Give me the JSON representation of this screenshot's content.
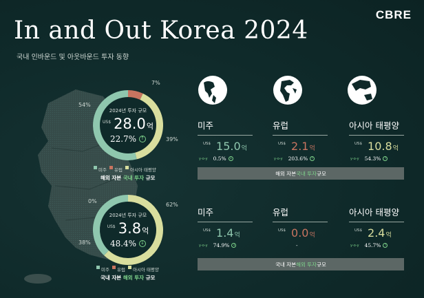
{
  "brand": "CBRE",
  "title": "In and Out Korea 2024",
  "subtitle": "국내 인바운드 및 아웃바운드 투자 동향",
  "colors": {
    "americas": "#8fc7ae",
    "europe": "#c87460",
    "asia": "#d9de9e",
    "growth": "#7ed38b"
  },
  "chart_data": [
    {
      "type": "pie",
      "title": "해외 자본 국내 투자 규모",
      "center_label": "2024년 투자 규모",
      "currency": "US$",
      "total": 28.0,
      "total_text": "28.0",
      "unit": "억",
      "growth": "22.7%",
      "growth_direction": "up",
      "categories": [
        "미주",
        "유럽",
        "아시아 태평양"
      ],
      "values": [
        54,
        7,
        39
      ],
      "labels": [
        "54%",
        "7%",
        "39%"
      ]
    },
    {
      "type": "pie",
      "title": "국내 자본 해외 투자 규모",
      "center_label": "2024년 투자 규모",
      "currency": "US$",
      "total": 3.8,
      "total_text": "3.8",
      "unit": "억",
      "growth": "48.4%",
      "growth_direction": "down",
      "categories": [
        "미주",
        "유럽",
        "아시아 태평양"
      ],
      "values": [
        38,
        0,
        62
      ],
      "labels": [
        "38%",
        "0%",
        "62%"
      ]
    }
  ],
  "legend": {
    "americas": "미주",
    "europe": "유럽",
    "asia": "아시아 태평양"
  },
  "donut1_title": {
    "pre": "해외 자본 ",
    "hl": "국내 투자",
    "post": " 규모"
  },
  "donut2_title": {
    "pre": "국내 자본 ",
    "hl": "해외 투자",
    "post": " 규모"
  },
  "inbound": {
    "regions": [
      {
        "name": "미주",
        "currency": "US$",
        "value": "15.0",
        "unit": "억",
        "yoy": "y-o-y",
        "growth": "0.5%",
        "dir": "down",
        "color": "#8fc7ae"
      },
      {
        "name": "유럽",
        "currency": "US$",
        "value": "2.1",
        "unit": "억",
        "yoy": "y-o-y",
        "growth": "203.6%",
        "dir": "up",
        "color": "#c87460"
      },
      {
        "name": "아시아 태평양",
        "currency": "US$",
        "value": "10.8",
        "unit": "억",
        "yoy": "y-o-y",
        "growth": "54.3%",
        "dir": "up",
        "color": "#d9de9e"
      }
    ],
    "bar": {
      "pre": "해외 자본 ",
      "hl": "국내 투자",
      "post": " 규모"
    }
  },
  "outbound": {
    "regions": [
      {
        "name": "미주",
        "currency": "US$",
        "value": "1.4",
        "unit": "억",
        "yoy": "y-o-y",
        "growth": "74.9%",
        "dir": "down",
        "color": "#8fc7ae"
      },
      {
        "name": "유럽",
        "currency": "US$",
        "value": "0.0",
        "unit": "억",
        "yoy": "y-o-y",
        "growth": "-",
        "dir": "none",
        "color": "#c87460"
      },
      {
        "name": "아시아 태평양",
        "currency": "US$",
        "value": "2.4",
        "unit": "억",
        "yoy": "y-o-y",
        "growth": "45.7%",
        "dir": "up",
        "color": "#d9de9e"
      }
    ],
    "bar": {
      "pre": "국내 자본 ",
      "hl": "해외 투자",
      "post": " 규모"
    }
  },
  "globes": [
    "americas-globe-icon",
    "europe-africa-globe-icon",
    "asia-pacific-globe-icon"
  ]
}
